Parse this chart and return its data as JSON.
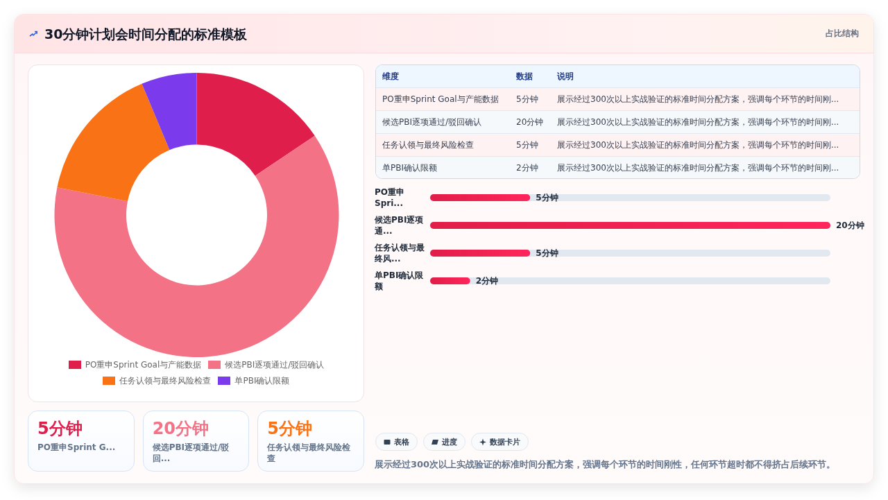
{
  "chart_data": [
    {
      "type": "donut",
      "title": "30分钟计划会时间分配的标准模板",
      "categories": [
        "PO重申Sprint Goal与产能数据",
        "候选PBI逐项通过/驳回确认",
        "任务认领与最终风险检查",
        "单PBI确认限额"
      ],
      "values": [
        15.6,
        62.5,
        15.6,
        6.3
      ],
      "colors": [
        "#e01e4b",
        "#f47286",
        "#f97316",
        "#7c3aed"
      ],
      "legend": "bottom"
    },
    {
      "type": "other",
      "subtitle": "占比结构",
      "categories": [
        "PO重申Sprint Goal与产能数据",
        "候选PBI逐项通过/驳回确认",
        "任务认领与最终风险检查",
        "单PBI确认限额"
      ],
      "value_labels": [
        "5分钟",
        "20分钟",
        "5分钟",
        "2分钟"
      ],
      "annotations": [
        "维度",
        "数据",
        "说明",
        "展示经过300次以上实战验证的标准时间分配方案，强调每个环节的时间刚...",
        "展示经过300次以上实战验证的标准时间分配方案，强调每个环节的时间刚...",
        "展示经过300次以上实战验证的标准时间分配方案，强调每个环节的时间刚...",
        "展示经过300次以上实战验证的标准时间分配方案，强调每个环节的时间刚..."
      ]
    },
    {
      "type": "bar",
      "orientation": "horizontal",
      "categories": [
        "PO重申Spri...",
        "候选PBI逐项通...",
        "任务认领与最终风...",
        "单PBI确认限额"
      ],
      "values": [
        5,
        20,
        5,
        2
      ],
      "value_labels": [
        "5分钟",
        "20分钟",
        "5分钟",
        "2分钟"
      ],
      "color": "#e11d48",
      "annotations": [
        "表格",
        "进度",
        "数据卡片",
        "展示经过300次以上实战验证的标准时间分配方案，强调每个环节的时间刚性，任何环节超时都不得挤占后续环节。"
      ]
    },
    {
      "type": "other",
      "categories": [
        "PO重申Sprint G...",
        "候选PBI逐项通过/驳回...",
        "任务认领与最终风险检查"
      ],
      "value_labels": [
        "5分钟",
        "20分钟",
        "5分钟"
      ]
    }
  ]
}
